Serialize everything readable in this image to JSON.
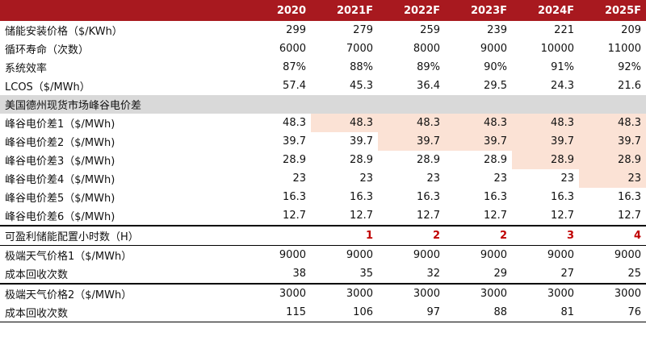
{
  "table": {
    "columns": [
      "2020",
      "2021F",
      "2022F",
      "2023F",
      "2024F",
      "2025F"
    ],
    "rows": [
      {
        "label": "储能安装价格（$/KWh）",
        "values": [
          299,
          279,
          259,
          239,
          221,
          209
        ]
      },
      {
        "label": "循环寿命（次数）",
        "values": [
          6000,
          7000,
          8000,
          9000,
          10000,
          11000
        ]
      },
      {
        "label": "系统效率",
        "values": [
          "87%",
          "88%",
          "89%",
          "90%",
          "91%",
          "92%"
        ]
      },
      {
        "label": "LCOS（$/MWh）",
        "values": [
          57.4,
          45.3,
          36.4,
          29.5,
          24.3,
          21.6
        ]
      },
      {
        "label": "美国德州现货市场峰谷电价差"
      },
      {
        "label": "峰谷电价差1（$/MWh)",
        "values": [
          48.3,
          48.3,
          48.3,
          48.3,
          48.3,
          48.3
        ]
      },
      {
        "label": "峰谷电价差2（$/MWh)",
        "values": [
          39.7,
          39.7,
          39.7,
          39.7,
          39.7,
          39.7
        ]
      },
      {
        "label": "峰谷电价差3（$/MWh)",
        "values": [
          28.9,
          28.9,
          28.9,
          28.9,
          28.9,
          28.9
        ]
      },
      {
        "label": "峰谷电价差4（$/MWh)",
        "values": [
          23,
          23,
          23,
          23,
          23,
          23
        ]
      },
      {
        "label": "峰谷电价差5（$/MWh)",
        "values": [
          16.3,
          16.3,
          16.3,
          16.3,
          16.3,
          16.3
        ]
      },
      {
        "label": "峰谷电价差6（$/MWh)",
        "values": [
          12.7,
          12.7,
          12.7,
          12.7,
          12.7,
          12.7
        ]
      },
      {
        "label": "可盈利储能配置小时数（H）",
        "values": [
          null,
          1,
          2,
          2,
          3,
          4
        ]
      },
      {
        "label": "极端天气价格1（$/MWh）",
        "values": [
          9000,
          9000,
          9000,
          9000,
          9000,
          9000
        ]
      },
      {
        "label": "成本回收次数",
        "values": [
          38,
          35,
          32,
          29,
          27,
          25
        ]
      },
      {
        "label": "极端天气价格2（$/MWh）",
        "values": [
          3000,
          3000,
          3000,
          3000,
          3000,
          3000
        ]
      },
      {
        "label": "成本回收次数",
        "values": [
          115,
          106,
          97,
          88,
          81,
          76
        ]
      }
    ]
  }
}
